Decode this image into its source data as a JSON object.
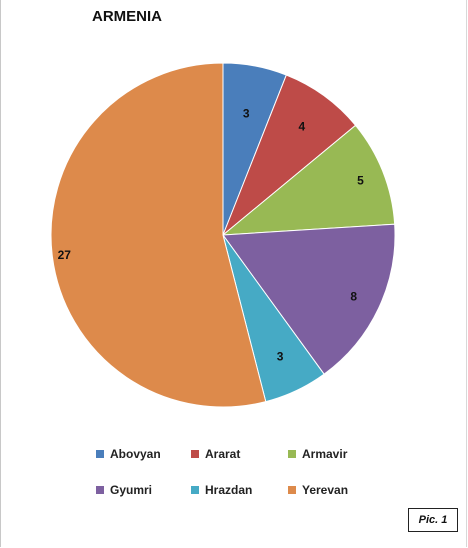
{
  "chart_data": {
    "type": "pie",
    "title": "ARMENIA",
    "categories": [
      "Abovyan",
      "Ararat",
      "Armavir",
      "Gyumri",
      "Hrazdan",
      "Yerevan"
    ],
    "values": [
      3,
      4,
      5,
      8,
      3,
      27
    ],
    "colors": [
      "#4a7ebb",
      "#be4b48",
      "#98b954",
      "#7d60a0",
      "#46aac5",
      "#dd8a4b"
    ],
    "legend_position": "bottom"
  },
  "caption": "Pic. 1"
}
